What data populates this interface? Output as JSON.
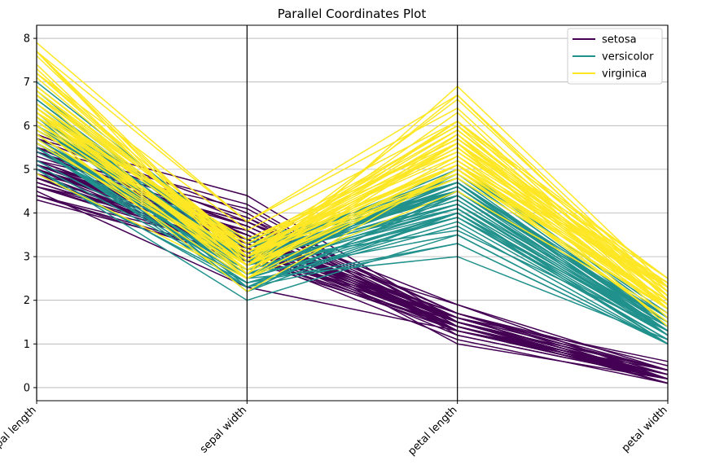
{
  "chart_data": {
    "type": "parallel-coordinates",
    "title": "Parallel Coordinates Plot",
    "axes": [
      "sepal length",
      "sepal width",
      "petal length",
      "petal width"
    ],
    "ylim": [
      -0.3,
      8.3
    ],
    "yticks": [
      0,
      1,
      2,
      3,
      4,
      5,
      6,
      7,
      8
    ],
    "grid": true,
    "legend_position": "top-right",
    "series": [
      {
        "name": "setosa",
        "color": "#440154",
        "lines": [
          [
            5.1,
            3.5,
            1.4,
            0.2
          ],
          [
            4.9,
            3.0,
            1.4,
            0.2
          ],
          [
            4.7,
            3.2,
            1.3,
            0.2
          ],
          [
            4.6,
            3.1,
            1.5,
            0.2
          ],
          [
            5.0,
            3.6,
            1.4,
            0.2
          ],
          [
            5.4,
            3.9,
            1.7,
            0.4
          ],
          [
            4.6,
            3.4,
            1.4,
            0.3
          ],
          [
            5.0,
            3.4,
            1.5,
            0.2
          ],
          [
            4.4,
            2.9,
            1.4,
            0.2
          ],
          [
            4.9,
            3.1,
            1.5,
            0.1
          ],
          [
            5.4,
            3.7,
            1.5,
            0.2
          ],
          [
            4.8,
            3.4,
            1.6,
            0.2
          ],
          [
            4.8,
            3.0,
            1.4,
            0.1
          ],
          [
            4.3,
            3.0,
            1.1,
            0.1
          ],
          [
            5.8,
            4.0,
            1.2,
            0.2
          ],
          [
            5.7,
            4.4,
            1.5,
            0.4
          ],
          [
            5.4,
            3.9,
            1.3,
            0.4
          ],
          [
            5.1,
            3.5,
            1.4,
            0.3
          ],
          [
            5.7,
            3.8,
            1.7,
            0.3
          ],
          [
            5.1,
            3.8,
            1.5,
            0.3
          ],
          [
            5.4,
            3.4,
            1.7,
            0.2
          ],
          [
            5.1,
            3.7,
            1.5,
            0.4
          ],
          [
            4.6,
            3.6,
            1.0,
            0.2
          ],
          [
            5.1,
            3.3,
            1.7,
            0.5
          ],
          [
            4.8,
            3.4,
            1.9,
            0.2
          ],
          [
            5.0,
            3.0,
            1.6,
            0.2
          ],
          [
            5.0,
            3.4,
            1.6,
            0.4
          ],
          [
            5.2,
            3.5,
            1.5,
            0.2
          ],
          [
            5.2,
            3.4,
            1.4,
            0.2
          ],
          [
            4.7,
            3.2,
            1.6,
            0.2
          ],
          [
            4.8,
            3.1,
            1.6,
            0.2
          ],
          [
            5.4,
            3.4,
            1.5,
            0.4
          ],
          [
            5.2,
            4.1,
            1.5,
            0.1
          ],
          [
            5.5,
            4.2,
            1.4,
            0.2
          ],
          [
            4.9,
            3.1,
            1.5,
            0.2
          ],
          [
            5.0,
            3.2,
            1.2,
            0.2
          ],
          [
            5.5,
            3.5,
            1.3,
            0.2
          ],
          [
            4.9,
            3.6,
            1.4,
            0.1
          ],
          [
            4.4,
            3.0,
            1.3,
            0.2
          ],
          [
            5.1,
            3.4,
            1.5,
            0.2
          ],
          [
            5.0,
            3.5,
            1.3,
            0.3
          ],
          [
            4.5,
            2.3,
            1.3,
            0.3
          ],
          [
            4.4,
            3.2,
            1.3,
            0.2
          ],
          [
            5.0,
            3.5,
            1.6,
            0.6
          ],
          [
            5.1,
            3.8,
            1.9,
            0.4
          ],
          [
            4.8,
            3.0,
            1.4,
            0.3
          ],
          [
            5.1,
            3.8,
            1.6,
            0.2
          ],
          [
            4.6,
            3.2,
            1.4,
            0.2
          ],
          [
            5.3,
            3.7,
            1.5,
            0.2
          ],
          [
            5.0,
            3.3,
            1.4,
            0.2
          ]
        ]
      },
      {
        "name": "versicolor",
        "color": "#21918c",
        "lines": [
          [
            7.0,
            3.2,
            4.7,
            1.4
          ],
          [
            6.4,
            3.2,
            4.5,
            1.5
          ],
          [
            6.9,
            3.1,
            4.9,
            1.5
          ],
          [
            5.5,
            2.3,
            4.0,
            1.3
          ],
          [
            6.5,
            2.8,
            4.6,
            1.5
          ],
          [
            5.7,
            2.8,
            4.5,
            1.3
          ],
          [
            6.3,
            3.3,
            4.7,
            1.6
          ],
          [
            4.9,
            2.4,
            3.3,
            1.0
          ],
          [
            6.6,
            2.9,
            4.6,
            1.3
          ],
          [
            5.2,
            2.7,
            3.9,
            1.4
          ],
          [
            5.0,
            2.0,
            3.5,
            1.0
          ],
          [
            5.9,
            3.0,
            4.2,
            1.5
          ],
          [
            6.0,
            2.2,
            4.0,
            1.0
          ],
          [
            6.1,
            2.9,
            4.7,
            1.4
          ],
          [
            5.6,
            2.9,
            3.6,
            1.3
          ],
          [
            6.7,
            3.1,
            4.4,
            1.4
          ],
          [
            5.6,
            3.0,
            4.5,
            1.5
          ],
          [
            5.8,
            2.7,
            4.1,
            1.0
          ],
          [
            6.2,
            2.2,
            4.5,
            1.5
          ],
          [
            5.6,
            2.5,
            3.9,
            1.1
          ],
          [
            5.9,
            3.2,
            4.8,
            1.8
          ],
          [
            6.1,
            2.8,
            4.0,
            1.3
          ],
          [
            6.3,
            2.5,
            4.9,
            1.5
          ],
          [
            6.1,
            2.8,
            4.7,
            1.2
          ],
          [
            6.4,
            2.9,
            4.3,
            1.3
          ],
          [
            6.6,
            3.0,
            4.4,
            1.4
          ],
          [
            6.8,
            2.8,
            4.8,
            1.4
          ],
          [
            6.7,
            3.0,
            5.0,
            1.7
          ],
          [
            6.0,
            2.9,
            4.5,
            1.5
          ],
          [
            5.7,
            2.6,
            3.5,
            1.0
          ],
          [
            5.5,
            2.4,
            3.8,
            1.1
          ],
          [
            5.5,
            2.4,
            3.7,
            1.0
          ],
          [
            5.8,
            2.7,
            3.9,
            1.2
          ],
          [
            6.0,
            2.7,
            5.1,
            1.6
          ],
          [
            5.4,
            3.0,
            4.5,
            1.5
          ],
          [
            6.0,
            3.4,
            4.5,
            1.6
          ],
          [
            6.7,
            3.1,
            4.7,
            1.5
          ],
          [
            6.3,
            2.3,
            4.4,
            1.3
          ],
          [
            5.6,
            3.0,
            4.1,
            1.3
          ],
          [
            5.5,
            2.5,
            4.0,
            1.3
          ],
          [
            5.5,
            2.6,
            4.4,
            1.2
          ],
          [
            6.1,
            3.0,
            4.6,
            1.4
          ],
          [
            5.8,
            2.6,
            4.0,
            1.2
          ],
          [
            5.0,
            2.3,
            3.3,
            1.0
          ],
          [
            5.6,
            2.7,
            4.2,
            1.3
          ],
          [
            5.7,
            3.0,
            4.2,
            1.2
          ],
          [
            5.7,
            2.9,
            4.2,
            1.3
          ],
          [
            6.2,
            2.9,
            4.3,
            1.3
          ],
          [
            5.1,
            2.5,
            3.0,
            1.1
          ],
          [
            5.7,
            2.8,
            4.1,
            1.3
          ]
        ]
      },
      {
        "name": "virginica",
        "color": "#fde725",
        "lines": [
          [
            6.3,
            3.3,
            6.0,
            2.5
          ],
          [
            5.8,
            2.7,
            5.1,
            1.9
          ],
          [
            7.1,
            3.0,
            5.9,
            2.1
          ],
          [
            6.3,
            2.9,
            5.6,
            1.8
          ],
          [
            6.5,
            3.0,
            5.8,
            2.2
          ],
          [
            7.6,
            3.0,
            6.6,
            2.1
          ],
          [
            4.9,
            2.5,
            4.5,
            1.7
          ],
          [
            7.3,
            2.9,
            6.3,
            1.8
          ],
          [
            6.7,
            2.5,
            5.8,
            1.8
          ],
          [
            7.2,
            3.6,
            6.1,
            2.5
          ],
          [
            6.5,
            3.2,
            5.1,
            2.0
          ],
          [
            6.4,
            2.7,
            5.3,
            1.9
          ],
          [
            6.8,
            3.0,
            5.5,
            2.1
          ],
          [
            5.7,
            2.5,
            5.0,
            2.0
          ],
          [
            5.8,
            2.8,
            5.1,
            2.4
          ],
          [
            6.4,
            3.2,
            5.3,
            2.3
          ],
          [
            6.5,
            3.0,
            5.5,
            1.8
          ],
          [
            7.7,
            3.8,
            6.7,
            2.2
          ],
          [
            7.7,
            2.6,
            6.9,
            2.3
          ],
          [
            6.0,
            2.2,
            5.0,
            1.5
          ],
          [
            6.9,
            3.2,
            5.7,
            2.3
          ],
          [
            5.6,
            2.8,
            4.9,
            2.0
          ],
          [
            7.7,
            2.8,
            6.7,
            2.0
          ],
          [
            6.3,
            2.7,
            4.9,
            1.8
          ],
          [
            6.7,
            3.3,
            5.7,
            2.1
          ],
          [
            7.2,
            3.2,
            6.0,
            1.8
          ],
          [
            6.2,
            2.8,
            4.8,
            1.8
          ],
          [
            6.1,
            3.0,
            4.9,
            1.8
          ],
          [
            6.4,
            2.8,
            5.6,
            2.1
          ],
          [
            7.2,
            3.0,
            5.8,
            1.6
          ],
          [
            7.4,
            2.8,
            6.1,
            1.9
          ],
          [
            7.9,
            3.8,
            6.4,
            2.0
          ],
          [
            6.4,
            2.8,
            5.6,
            2.2
          ],
          [
            6.3,
            2.8,
            5.1,
            1.5
          ],
          [
            6.1,
            2.6,
            5.6,
            1.4
          ],
          [
            7.7,
            3.0,
            6.1,
            2.3
          ],
          [
            6.3,
            3.4,
            5.6,
            2.4
          ],
          [
            6.4,
            3.1,
            5.5,
            1.8
          ],
          [
            6.0,
            3.0,
            4.8,
            1.8
          ],
          [
            6.9,
            3.1,
            5.4,
            2.1
          ],
          [
            6.7,
            3.1,
            5.6,
            2.4
          ],
          [
            6.9,
            3.1,
            5.1,
            2.3
          ],
          [
            5.8,
            2.7,
            5.1,
            1.9
          ],
          [
            6.8,
            3.2,
            5.9,
            2.3
          ],
          [
            6.7,
            3.3,
            5.7,
            2.5
          ],
          [
            6.7,
            3.0,
            5.2,
            2.3
          ],
          [
            6.3,
            2.5,
            5.0,
            1.9
          ],
          [
            6.5,
            3.0,
            5.2,
            2.0
          ],
          [
            6.2,
            3.4,
            5.4,
            2.3
          ],
          [
            5.9,
            3.0,
            5.1,
            1.8
          ]
        ]
      }
    ]
  }
}
